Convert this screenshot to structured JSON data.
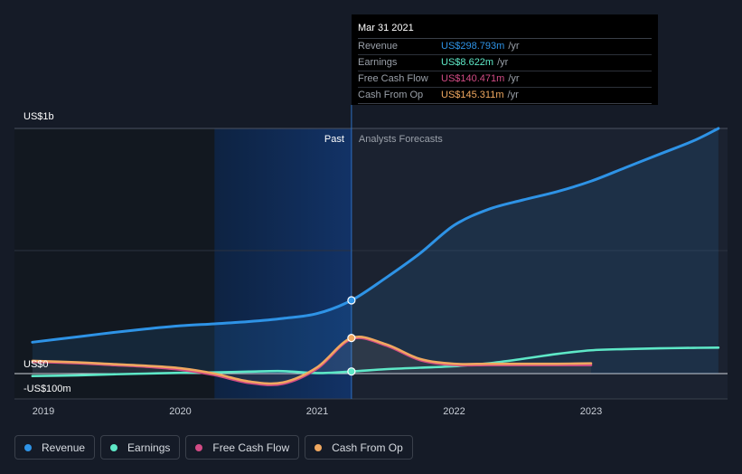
{
  "chart_data": {
    "type": "line",
    "x_range": [
      2018.92,
      2023.93
    ],
    "ylim": [
      -100,
      1000
    ],
    "y_unit": "US$ millions",
    "x_ticks": [
      {
        "value": 2019,
        "label": "2019"
      },
      {
        "value": 2020,
        "label": "2020"
      },
      {
        "value": 2021,
        "label": "2021"
      },
      {
        "value": 2022,
        "label": "2022"
      },
      {
        "value": 2023,
        "label": "2023"
      }
    ],
    "y_ticks": [
      {
        "value": 1000,
        "label": "US$1b"
      },
      {
        "value": 0,
        "label": "US$0"
      },
      {
        "value": -100,
        "label": "-US$100m"
      }
    ],
    "divider_x": 2021.25,
    "highlight_start_x": 2020.25,
    "past_label": "Past",
    "forecast_label": "Analysts Forecasts",
    "series": [
      {
        "name": "Revenue",
        "key": "revenue",
        "color": "#2e93e6",
        "fill": true,
        "x": [
          2018.92,
          2019.25,
          2019.5,
          2019.75,
          2020.0,
          2020.25,
          2020.5,
          2020.75,
          2021.0,
          2021.25,
          2021.5,
          2021.75,
          2022.0,
          2022.25,
          2022.5,
          2022.75,
          2023.0,
          2023.25,
          2023.5,
          2023.75,
          2023.93
        ],
        "values": [
          128,
          150,
          167,
          182,
          195,
          203,
          212,
          225,
          245,
          298.8,
          390,
          490,
          605,
          670,
          708,
          742,
          785,
          840,
          895,
          950,
          1000
        ]
      },
      {
        "name": "Earnings",
        "key": "earnings",
        "color": "#5ee8c7",
        "fill": false,
        "x": [
          2018.92,
          2019.25,
          2019.5,
          2019.75,
          2020.0,
          2020.25,
          2020.5,
          2020.75,
          2021.0,
          2021.25,
          2021.5,
          2021.75,
          2022.0,
          2022.25,
          2022.5,
          2022.75,
          2023.0,
          2023.25,
          2023.5,
          2023.75,
          2023.93
        ],
        "values": [
          -10,
          -7,
          -3,
          0,
          3,
          5,
          8,
          10,
          2,
          8.6,
          18,
          24,
          30,
          42,
          60,
          80,
          95,
          100,
          103,
          105,
          106
        ]
      },
      {
        "name": "Free Cash Flow",
        "key": "fcf",
        "color": "#d24b85",
        "fill": false,
        "x": [
          2018.92,
          2019.25,
          2019.5,
          2019.75,
          2020.0,
          2020.25,
          2020.5,
          2020.75,
          2021.0,
          2021.25,
          2021.5,
          2021.75,
          2022.0,
          2022.25,
          2022.5,
          2022.75,
          2023.0
        ],
        "values": [
          48,
          42,
          35,
          28,
          16,
          -6,
          -38,
          -42,
          20,
          140.5,
          115,
          55,
          35,
          35,
          35,
          35,
          35
        ]
      },
      {
        "name": "Cash From Op",
        "key": "cfo",
        "color": "#f0a860",
        "fill": false,
        "x": [
          2018.92,
          2019.25,
          2019.5,
          2019.75,
          2020.0,
          2020.25,
          2020.5,
          2020.75,
          2021.0,
          2021.25,
          2021.5,
          2021.75,
          2022.0,
          2022.25,
          2022.5,
          2022.75,
          2023.0
        ],
        "values": [
          52,
          46,
          39,
          32,
          22,
          0,
          -32,
          -36,
          26,
          145.3,
          120,
          60,
          40,
          40,
          40,
          40,
          42
        ]
      }
    ],
    "markers": [
      {
        "series": "revenue",
        "x": 2021.25,
        "value": 298.8
      },
      {
        "series": "cfo",
        "x": 2021.25,
        "value": 145.3
      },
      {
        "series": "earnings",
        "x": 2021.25,
        "value": 8.6
      }
    ]
  },
  "tooltip": {
    "date": "Mar 31 2021",
    "rows": [
      {
        "name": "Revenue",
        "value": "US$298.793m",
        "unit": "/yr",
        "color": "#2e93e6"
      },
      {
        "name": "Earnings",
        "value": "US$8.622m",
        "unit": "/yr",
        "color": "#5ee8c7"
      },
      {
        "name": "Free Cash Flow",
        "value": "US$140.471m",
        "unit": "/yr",
        "color": "#d24b85"
      },
      {
        "name": "Cash From Op",
        "value": "US$145.311m",
        "unit": "/yr",
        "color": "#f0a860"
      }
    ]
  },
  "legend": [
    {
      "label": "Revenue",
      "color": "#2e93e6"
    },
    {
      "label": "Earnings",
      "color": "#5ee8c7"
    },
    {
      "label": "Free Cash Flow",
      "color": "#d24b85"
    },
    {
      "label": "Cash From Op",
      "color": "#f0a860"
    }
  ]
}
